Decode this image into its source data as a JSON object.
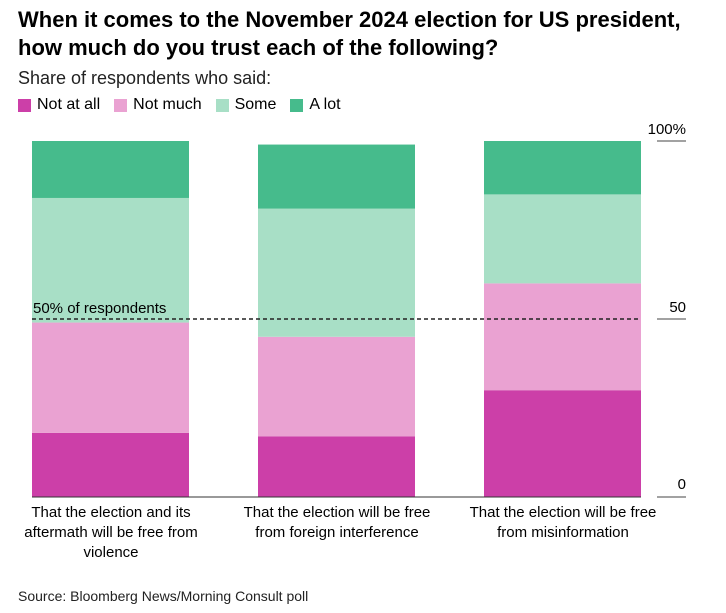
{
  "header": {
    "title": "When it comes to the November 2024 election for US president, how much do you trust each of the following?",
    "subtitle": "Share of respondents who said:"
  },
  "footer": {
    "source": "Source: Bloomberg News/Morning Consult poll"
  },
  "chart_data": {
    "type": "bar",
    "stacked": true,
    "title": "When it comes to the November 2024 election for US president, how much do you trust each of the following?",
    "subtitle": "Share of respondents who said:",
    "categories": [
      "That the election and its aftermath will be free from violence",
      "That the election will be free from foreign interference",
      "That the election will be free from misinformation"
    ],
    "series": [
      {
        "name": "Not at all",
        "color": "#cc3fa8",
        "values": [
          18,
          17,
          30
        ]
      },
      {
        "name": "Not much",
        "color": "#eaa2d2",
        "values": [
          31,
          28,
          30
        ]
      },
      {
        "name": "Some",
        "color": "#a8dfc6",
        "values": [
          35,
          36,
          25
        ]
      },
      {
        "name": "A lot",
        "color": "#46bb8c",
        "values": [
          16,
          18,
          15
        ]
      }
    ],
    "ylim": [
      0,
      100
    ],
    "yticks": [
      "0",
      "50",
      "100%"
    ],
    "legend_position": "top-left",
    "reference_line": {
      "value": 50,
      "label": "50% of respondents",
      "style": "dashed"
    }
  }
}
